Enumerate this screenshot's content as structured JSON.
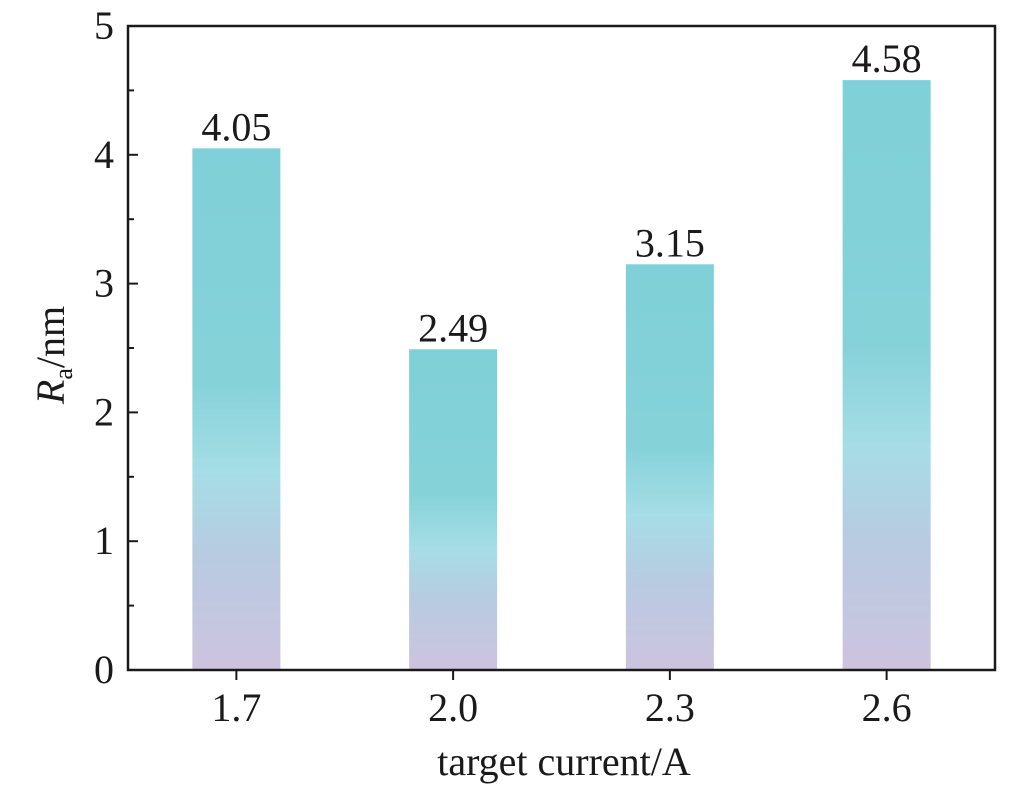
{
  "chart_data": {
    "type": "bar",
    "categories": [
      "1.7",
      "2.0",
      "2.3",
      "2.6"
    ],
    "values": [
      4.05,
      2.49,
      3.15,
      4.58
    ],
    "data_labels": [
      "4.05",
      "2.49",
      "3.15",
      "4.58"
    ],
    "title": "",
    "xlabel": "target current/A",
    "ylabel": {
      "symbol": "R",
      "subscript": "a",
      "unit": "/nm"
    },
    "ylim": [
      0,
      5
    ],
    "yticks": [
      "0",
      "1",
      "2",
      "3",
      "4",
      "5"
    ],
    "grid": false,
    "legend": "none",
    "colors": {
      "bar_top": "#7fcfd6",
      "bar_mid": "#a8dde7",
      "bar_bottom": "#cdc3e0",
      "axis": "#1a1a1a"
    }
  }
}
